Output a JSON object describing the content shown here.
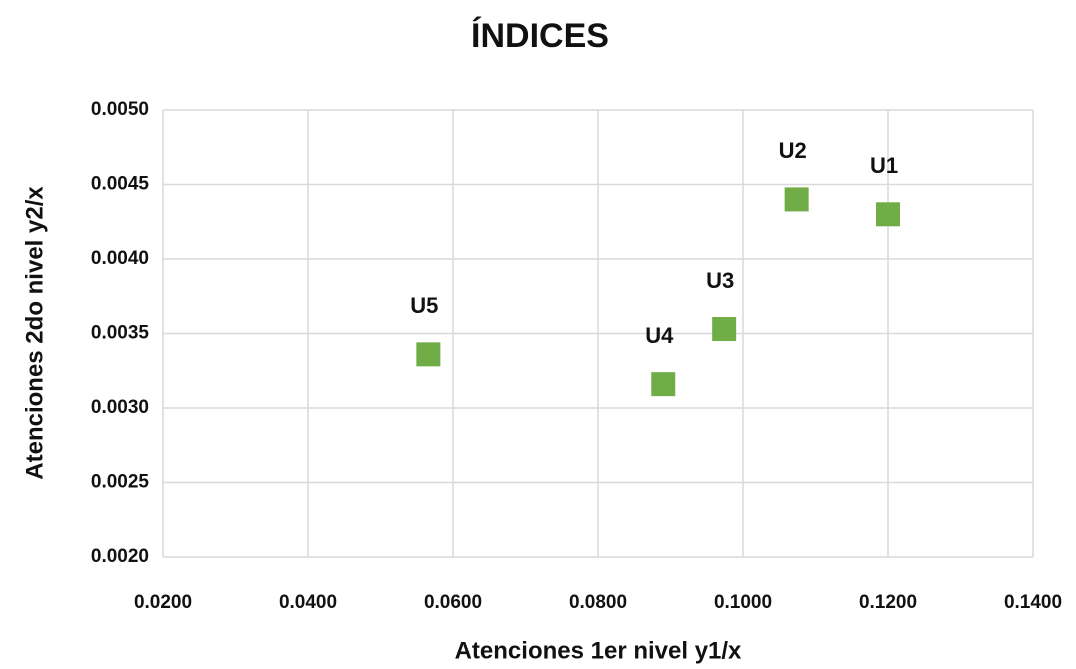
{
  "chart_data": {
    "type": "scatter",
    "title": "ÍNDICES",
    "x_label": "Atenciones 1er nivel y1/x",
    "y_label": "Atenciones 2do nivel y2/x",
    "x": [
      0.12,
      0.1074,
      0.0974,
      0.089,
      0.0566
    ],
    "values": [
      0.0043,
      0.0044,
      0.00353,
      0.00316,
      0.00336
    ],
    "labels": [
      "U1",
      "U2",
      "U3",
      "U4",
      "U5"
    ],
    "color": "#70ad47",
    "xlim": [
      0.02,
      0.14
    ],
    "xticks": [
      {
        "value": 0.02,
        "label": "0.0200"
      },
      {
        "value": 0.04,
        "label": "0.0400"
      },
      {
        "value": 0.06,
        "label": "0.0600"
      },
      {
        "value": 0.08,
        "label": "0.0800"
      },
      {
        "value": 0.1,
        "label": "0.1000"
      },
      {
        "value": 0.12,
        "label": "0.1200"
      },
      {
        "value": 0.14,
        "label": "0.1400"
      }
    ],
    "ylim": [
      0.002,
      0.005
    ],
    "yticks": [
      {
        "value": 0.002,
        "label": "0.0020"
      },
      {
        "value": 0.0025,
        "label": "0.0025"
      },
      {
        "value": 0.003,
        "label": "0.0030"
      },
      {
        "value": 0.0035,
        "label": "0.0035"
      },
      {
        "value": 0.004,
        "label": "0.0040"
      },
      {
        "value": 0.0045,
        "label": "0.0045"
      },
      {
        "value": 0.005,
        "label": "0.0050"
      }
    ],
    "grid": true
  }
}
